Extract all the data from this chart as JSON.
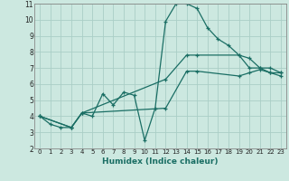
{
  "xlabel": "Humidex (Indice chaleur)",
  "bg_color": "#cce8e0",
  "grid_color": "#aacec6",
  "line_color": "#1a6e64",
  "xlim": [
    -0.5,
    23.5
  ],
  "ylim": [
    2,
    11
  ],
  "xticks": [
    0,
    1,
    2,
    3,
    4,
    5,
    6,
    7,
    8,
    9,
    10,
    11,
    12,
    13,
    14,
    15,
    16,
    17,
    18,
    19,
    20,
    21,
    22,
    23
  ],
  "yticks": [
    2,
    3,
    4,
    5,
    6,
    7,
    8,
    9,
    10,
    11
  ],
  "curve1_x": [
    0,
    1,
    2,
    3,
    4,
    5,
    6,
    7,
    8,
    9,
    10,
    11,
    12,
    13,
    14,
    15,
    16,
    17,
    18,
    19,
    20,
    21,
    22,
    23
  ],
  "curve1_y": [
    4.0,
    3.5,
    3.3,
    3.3,
    4.2,
    4.0,
    5.4,
    4.7,
    5.5,
    5.3,
    2.5,
    4.5,
    9.9,
    11.0,
    11.0,
    10.7,
    9.5,
    8.8,
    8.4,
    7.8,
    7.0,
    7.0,
    6.7,
    6.7
  ],
  "curve2_x": [
    0,
    3,
    4,
    12,
    14,
    15,
    19,
    20,
    21,
    22,
    23
  ],
  "curve2_y": [
    4.0,
    3.3,
    4.2,
    6.3,
    7.8,
    7.8,
    7.8,
    7.6,
    7.0,
    7.0,
    6.7
  ],
  "curve3_x": [
    0,
    3,
    4,
    12,
    14,
    15,
    19,
    20,
    21,
    22,
    23
  ],
  "curve3_y": [
    4.0,
    3.3,
    4.2,
    4.5,
    6.8,
    6.8,
    6.5,
    6.7,
    6.9,
    6.7,
    6.5
  ]
}
